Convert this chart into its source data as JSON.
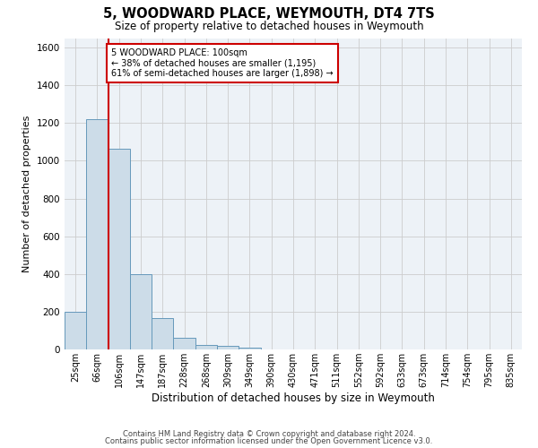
{
  "title": "5, WOODWARD PLACE, WEYMOUTH, DT4 7TS",
  "subtitle": "Size of property relative to detached houses in Weymouth",
  "xlabel": "Distribution of detached houses by size in Weymouth",
  "ylabel": "Number of detached properties",
  "categories": [
    "25sqm",
    "66sqm",
    "106sqm",
    "147sqm",
    "187sqm",
    "228sqm",
    "268sqm",
    "309sqm",
    "349sqm",
    "390sqm",
    "430sqm",
    "471sqm",
    "511sqm",
    "552sqm",
    "592sqm",
    "633sqm",
    "673sqm",
    "714sqm",
    "754sqm",
    "795sqm",
    "835sqm"
  ],
  "values": [
    200,
    1220,
    1065,
    400,
    165,
    60,
    25,
    18,
    10,
    0,
    0,
    0,
    0,
    0,
    0,
    0,
    0,
    0,
    0,
    0,
    0
  ],
  "bar_color": "#ccdce8",
  "bar_edge_color": "#6699bb",
  "annotation_box_text": "5 WOODWARD PLACE: 100sqm\n← 38% of detached houses are smaller (1,195)\n61% of semi-detached houses are larger (1,898) →",
  "vline_color": "#cc0000",
  "vline_x_index": 2,
  "ylim": [
    0,
    1650
  ],
  "yticks": [
    0,
    200,
    400,
    600,
    800,
    1000,
    1200,
    1400,
    1600
  ],
  "grid_color": "#cccccc",
  "bg_color": "#edf2f7",
  "footer_line1": "Contains HM Land Registry data © Crown copyright and database right 2024.",
  "footer_line2": "Contains public sector information licensed under the Open Government Licence v3.0."
}
